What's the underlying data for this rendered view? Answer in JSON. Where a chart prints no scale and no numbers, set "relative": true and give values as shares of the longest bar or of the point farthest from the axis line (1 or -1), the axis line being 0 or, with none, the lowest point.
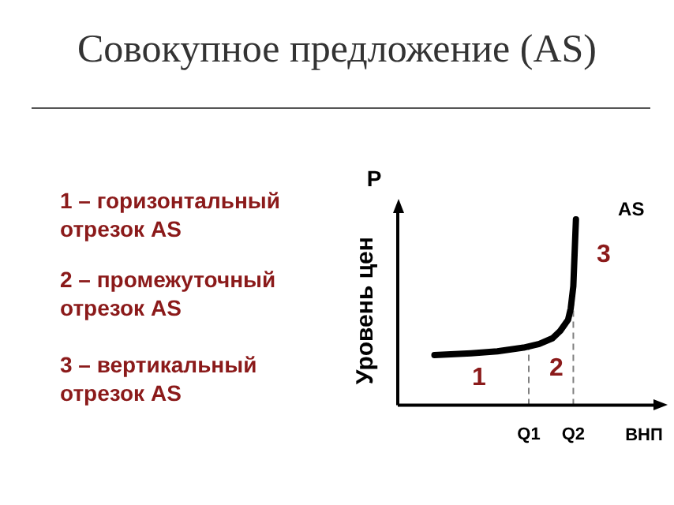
{
  "chart_data": {
    "type": "line",
    "title": "Совокупное предложение (AS)",
    "xlabel": "ВНП",
    "ylabel": "Уровень цен",
    "relative": true,
    "categories": [
      null,
      null,
      null,
      null,
      null,
      null,
      null,
      null,
      null,
      null,
      null,
      null,
      null,
      null,
      null,
      null,
      null,
      null,
      null,
      null,
      null,
      null,
      null,
      null,
      null,
      null,
      null,
      null,
      null,
      null,
      null,
      null,
      null,
      null,
      null,
      null,
      null,
      null,
      null,
      null,
      null,
      null,
      null,
      null,
      null,
      null,
      null,
      null,
      null,
      null,
      "Q1",
      null,
      null,
      null,
      null,
      null,
      null,
      null,
      null,
      null,
      null,
      null,
      null,
      null,
      null,
      null,
      null,
      "Q2",
      null,
      null,
      null,
      null,
      null,
      null,
      null,
      null,
      null,
      null,
      null,
      null,
      null,
      null,
      null,
      null,
      null,
      null,
      null,
      null,
      null,
      null,
      null,
      null,
      null,
      null,
      null,
      null,
      null,
      null,
      null,
      null,
      null
    ],
    "series": [
      {
        "name": "AS",
        "color": "#000000",
        "values": [
          null,
          null,
          null,
          null,
          null,
          null,
          null,
          null,
          null,
          null,
          null,
          null,
          null,
          null,
          0.27,
          null,
          null,
          null,
          null,
          null,
          null,
          null,
          null,
          null,
          null,
          null,
          null,
          null,
          0.28,
          null,
          null,
          null,
          null,
          null,
          null,
          null,
          null,
          null,
          0.29,
          null,
          null,
          null,
          null,
          null,
          null,
          null,
          null,
          null,
          0.31,
          null,
          null,
          null,
          null,
          null,
          0.33,
          null,
          null,
          null,
          null,
          0.36,
          null,
          null,
          0.4,
          null,
          null,
          0.46,
          0.52,
          0.64,
          1,
          null,
          null,
          null,
          null,
          null,
          null,
          null,
          null,
          null,
          null,
          null,
          null,
          null,
          null,
          null,
          null,
          null,
          null,
          null,
          null,
          null,
          null,
          null,
          null,
          null,
          null,
          null,
          null,
          null,
          null,
          null,
          null
        ]
      }
    ],
    "ref_lines": [
      {
        "axis": "x",
        "value": "Q1",
        "color": "#808080",
        "line_style": "dashed"
      },
      {
        "axis": "x",
        "value": "Q2",
        "color": "#808080",
        "line_style": "dashed"
      }
    ],
    "annotations": [
      "P",
      "1 – горизонтальный отрезок AS",
      "2 – промежуточный отрезок AS",
      "3 – вертикальный отрезок AS",
      "1",
      "2",
      "3"
    ],
    "marker": "none",
    "line_style": "solid",
    "legend": false,
    "grid": false
  }
}
